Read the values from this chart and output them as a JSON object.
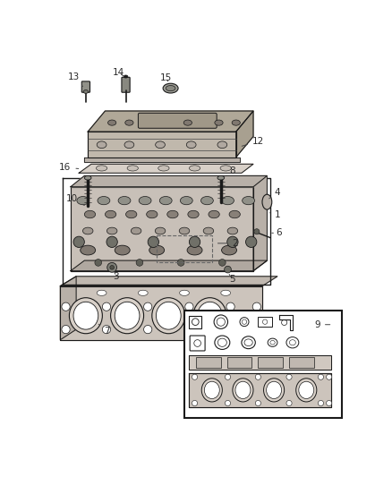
{
  "bg_color": "#ffffff",
  "fig_width": 4.38,
  "fig_height": 5.33,
  "dpi": 100,
  "label_fontsize": 7.5,
  "label_color": "#2a2a2a",
  "line_color": "#444444",
  "dark_color": "#1a1a1a",
  "part_fill": "#c8c0b0",
  "part_fill2": "#b8b0a0",
  "gasket_fill": "#d0c8c0",
  "head_fill": "#c0b8b0",
  "shadow_fill": "#a8a098"
}
